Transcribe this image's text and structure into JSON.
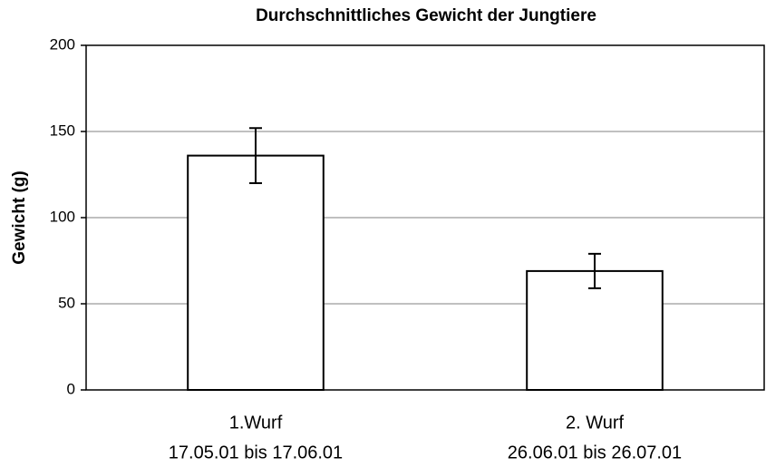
{
  "chart_data": {
    "type": "bar",
    "title": "Durchschnittliches Gewicht der Jungtiere",
    "y_label": "Gewicht (g)",
    "categories": [
      [
        "1.Wurf",
        "17.05.01 bis 17.06.01"
      ],
      [
        "2. Wurf",
        "26.06.01 bis 26.07.01"
      ]
    ],
    "values": [
      136,
      69
    ],
    "errors": [
      16,
      10
    ],
    "color": "#ffffff",
    "ylim": [
      0,
      200
    ],
    "yticks": [
      0,
      50,
      100,
      150,
      200
    ],
    "grid": true
  }
}
